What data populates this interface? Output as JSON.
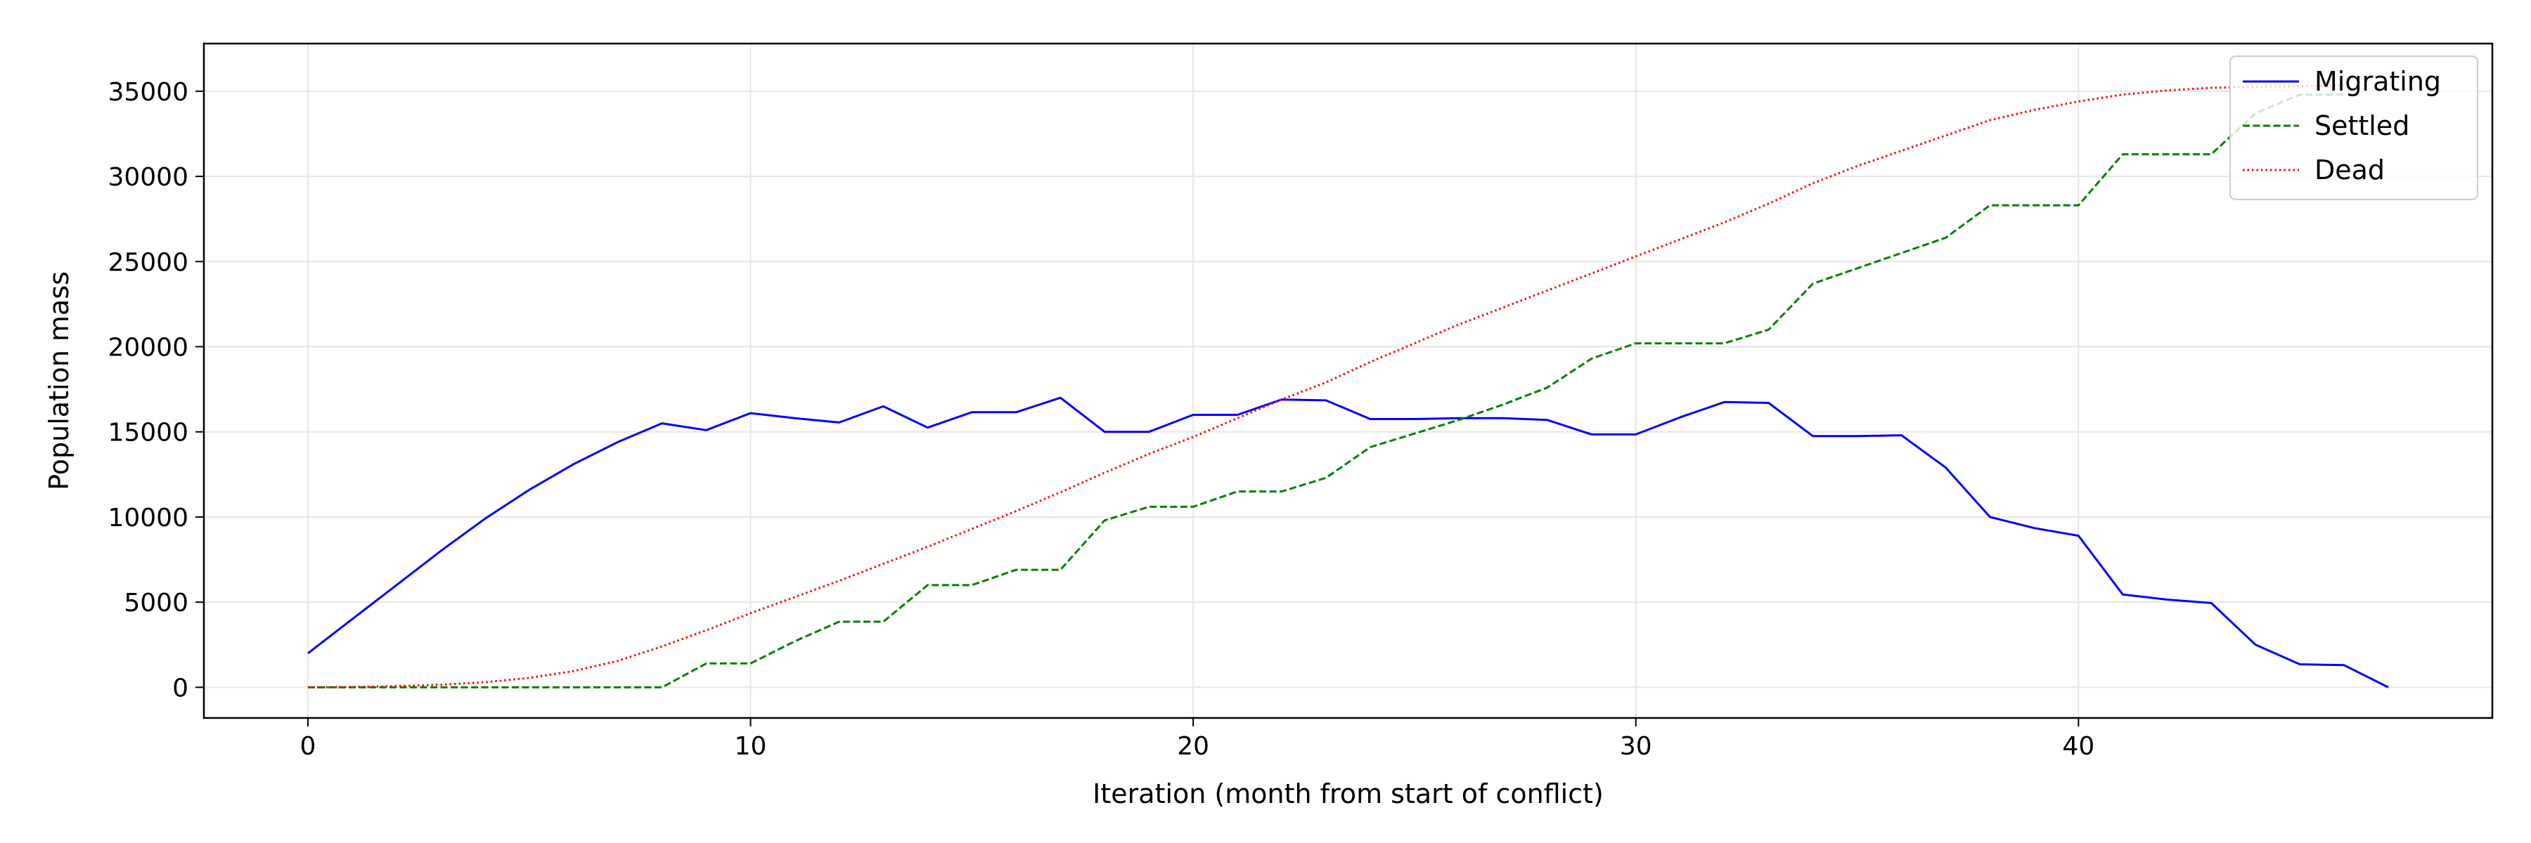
{
  "chart_data": {
    "type": "line",
    "title": "",
    "xlabel": "Iteration (month from start of conflict)",
    "ylabel": "Population mass",
    "xlim": [
      -2.35,
      49.35
    ],
    "ylim": [
      -1800,
      37800
    ],
    "xticks": [
      0,
      10,
      20,
      30,
      40
    ],
    "yticks": [
      0,
      5000,
      10000,
      15000,
      20000,
      25000,
      30000,
      35000
    ],
    "grid": true,
    "legend_position": "top-right",
    "x": [
      0,
      1,
      2,
      3,
      4,
      5,
      6,
      7,
      8,
      9,
      10,
      11,
      12,
      13,
      14,
      15,
      16,
      17,
      18,
      19,
      20,
      21,
      22,
      23,
      24,
      25,
      26,
      27,
      28,
      29,
      30,
      31,
      32,
      33,
      34,
      35,
      36,
      37,
      38,
      39,
      40,
      41,
      42,
      43,
      44,
      45,
      46,
      47
    ],
    "series": [
      {
        "name": "Migrating",
        "color": "#0000ff",
        "style": "solid",
        "values": [
          2000,
          4000,
          6000,
          8000,
          9900,
          11600,
          13100,
          14400,
          15500,
          15100,
          16100,
          15800,
          15550,
          16500,
          15250,
          16150,
          16150,
          17000,
          15000,
          15000,
          16000,
          16000,
          16900,
          16850,
          15750,
          15750,
          15800,
          15800,
          15700,
          14850,
          14850,
          15850,
          16750,
          16700,
          14750,
          14750,
          14800,
          12900,
          10000,
          9350,
          8900,
          5450,
          5150,
          4950,
          2500,
          1350,
          1300,
          0
        ]
      },
      {
        "name": "Settled",
        "color": "#008000",
        "style": "dashed",
        "values": [
          0,
          0,
          0,
          0,
          0,
          0,
          0,
          0,
          0,
          1400,
          1400,
          2700,
          3850,
          3850,
          6000,
          6000,
          6900,
          6900,
          9800,
          10600,
          10600,
          11500,
          11500,
          12300,
          14100,
          14900,
          15700,
          16600,
          17600,
          19300,
          20200,
          20200,
          20200,
          21000,
          23700,
          24600,
          25500,
          26400,
          28300,
          28300,
          28300,
          31300,
          31300,
          31300,
          33700,
          34800,
          34800,
          null
        ]
      },
      {
        "name": "Dead",
        "color": "#ff0000",
        "style": "dotted",
        "values": [
          0,
          20,
          70,
          150,
          300,
          550,
          950,
          1550,
          2400,
          3350,
          4350,
          5300,
          6250,
          7250,
          8250,
          9300,
          10350,
          11450,
          12600,
          13700,
          14700,
          15800,
          16900,
          17900,
          19100,
          20200,
          21300,
          22300,
          23300,
          24300,
          25300,
          26300,
          27300,
          28400,
          29600,
          30600,
          31500,
          32400,
          33300,
          33900,
          34400,
          34800,
          35050,
          35200,
          35250,
          35300,
          35350,
          null
        ]
      }
    ]
  }
}
